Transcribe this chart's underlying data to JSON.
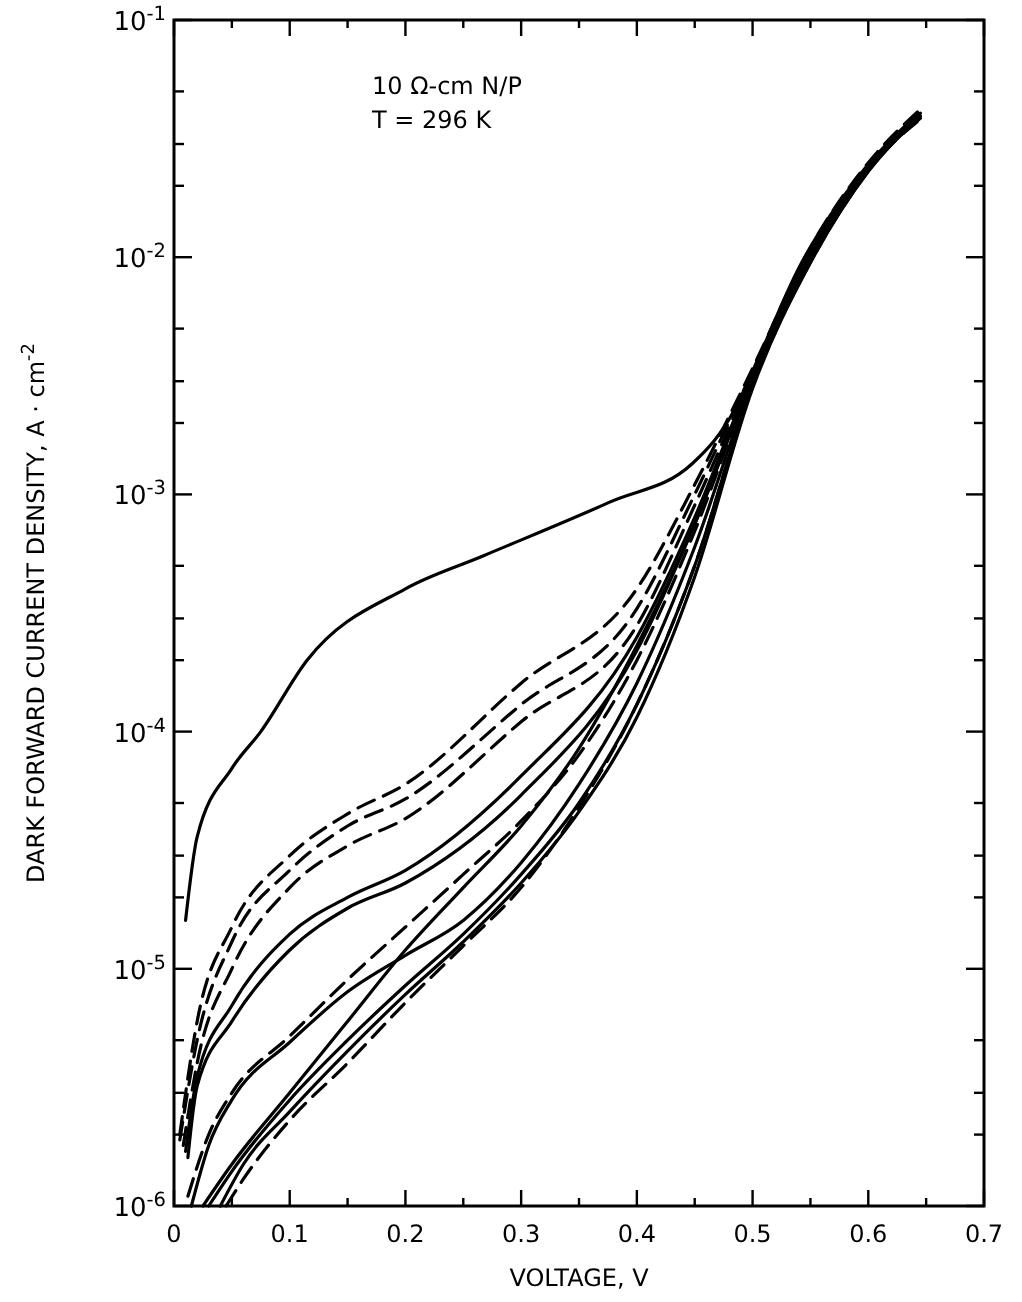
{
  "chart_data": {
    "type": "line",
    "xlabel": "VOLTAGE, V",
    "ylabel": "DARK FORWARD CURRENT DENSITY, A · cm$^{-2}$",
    "annotations": [
      "10 Ω-cm N/P",
      "T = 296 K"
    ],
    "log": "y",
    "grid": false,
    "xlim": [
      0,
      0.7
    ],
    "ylim": [
      1e-06,
      0.1
    ],
    "xticks": [
      0,
      0.1,
      0.2,
      0.3,
      0.4,
      0.5,
      0.6,
      0.7,
      {
        "value": 0.05,
        "label": null
      },
      {
        "value": 0.15,
        "label": null
      },
      {
        "value": 0.25,
        "label": null
      },
      {
        "value": 0.35,
        "label": null
      },
      {
        "value": 0.45,
        "label": null
      },
      {
        "value": 0.55,
        "label": null
      },
      {
        "value": 0.65,
        "label": null
      }
    ],
    "yticks": [
      {
        "value": 1e-06,
        "label": "10$^{-6}$"
      },
      {
        "value": 1e-05,
        "label": "10$^{-5}$"
      },
      {
        "value": 0.0001,
        "label": "10$^{-4}$"
      },
      {
        "value": 0.001,
        "label": "10$^{-3}$"
      },
      {
        "value": 0.01,
        "label": "10$^{-2}$"
      },
      {
        "value": 0.1,
        "label": "10$^{-1}$"
      },
      {
        "value": 2e-06,
        "label": null
      },
      {
        "value": 3e-06,
        "label": null
      },
      {
        "value": 5e-06,
        "label": null
      },
      {
        "value": 2e-05,
        "label": null
      },
      {
        "value": 3e-05,
        "label": null
      },
      {
        "value": 5e-05,
        "label": null
      },
      {
        "value": 0.0002,
        "label": null
      },
      {
        "value": 0.0003,
        "label": null
      },
      {
        "value": 0.0005,
        "label": null
      },
      {
        "value": 0.002,
        "label": null
      },
      {
        "value": 0.003,
        "label": null
      },
      {
        "value": 0.005,
        "label": null
      },
      {
        "value": 0.02,
        "label": null
      },
      {
        "value": 0.03,
        "label": null
      },
      {
        "value": 0.05,
        "label": null
      }
    ],
    "series": [
      {
        "color": "#000000",
        "line_style": "solid",
        "x": [
          0.01,
          0.02,
          0.05,
          0.075,
          0.115,
          0.2,
          0.267,
          0.377,
          0.448,
          0.485,
          0.5,
          0.54,
          0.595,
          0.64
        ],
        "values": [
          1.6e-05,
          3.6e-05,
          7e-05,
          0.0001,
          0.0002,
          0.0004,
          0.00055,
          0.00093,
          0.00135,
          0.0023,
          0.0033,
          0.009,
          0.023,
          0.039
        ]
      },
      {
        "color": "#000000",
        "line_style": "dashed",
        "x": [
          0.005,
          0.02,
          0.05,
          0.1,
          0.15,
          0.2,
          0.3,
          0.4,
          0.45,
          0.5,
          0.55,
          0.6,
          0.645
        ],
        "values": [
          2e-06,
          6e-06,
          1.5e-05,
          3e-05,
          4.5e-05,
          6e-05,
          0.00016,
          0.0004,
          0.0011,
          0.0034,
          0.011,
          0.025,
          0.042
        ]
      },
      {
        "color": "#000000",
        "line_style": "dashed",
        "x": [
          0.005,
          0.02,
          0.05,
          0.1,
          0.15,
          0.2,
          0.3,
          0.4,
          0.45,
          0.5,
          0.55,
          0.6,
          0.645
        ],
        "values": [
          1.9e-06,
          5e-06,
          1.3e-05,
          2.6e-05,
          4e-05,
          5.2e-05,
          0.00013,
          0.00033,
          0.001,
          0.0033,
          0.0105,
          0.024,
          0.041
        ]
      },
      {
        "color": "#000000",
        "line_style": "dashed",
        "x": [
          0.008,
          0.02,
          0.05,
          0.1,
          0.15,
          0.2,
          0.3,
          0.4,
          0.45,
          0.5,
          0.55,
          0.6,
          0.645
        ],
        "values": [
          1.8e-06,
          4e-06,
          1e-05,
          2.2e-05,
          3.3e-05,
          4.3e-05,
          0.00011,
          0.00028,
          0.0009,
          0.0032,
          0.0105,
          0.024,
          0.04
        ]
      },
      {
        "color": "#000000",
        "line_style": "solid",
        "x": [
          0.01,
          0.02,
          0.05,
          0.1,
          0.15,
          0.2,
          0.3,
          0.4,
          0.45,
          0.5,
          0.55,
          0.6,
          0.645
        ],
        "values": [
          1.7e-06,
          3.5e-06,
          7e-06,
          1.4e-05,
          2e-05,
          2.6e-05,
          6.5e-05,
          0.00025,
          0.0008,
          0.0032,
          0.0105,
          0.024,
          0.0395
        ]
      },
      {
        "color": "#000000",
        "line_style": "solid",
        "x": [
          0.012,
          0.02,
          0.05,
          0.1,
          0.15,
          0.2,
          0.3,
          0.4,
          0.45,
          0.5,
          0.55,
          0.6,
          0.645
        ],
        "values": [
          1.6e-06,
          3.2e-06,
          6e-06,
          1.2e-05,
          1.8e-05,
          2.3e-05,
          5.4e-05,
          0.00022,
          0.00075,
          0.0031,
          0.01,
          0.0235,
          0.0385
        ]
      },
      {
        "color": "#000000",
        "line_style": "dashed",
        "x": [
          0.012,
          0.03,
          0.05,
          0.1,
          0.15,
          0.2,
          0.25,
          0.3,
          0.35,
          0.4,
          0.45,
          0.5,
          0.55,
          0.6,
          0.645
        ],
        "values": [
          1.1e-06,
          2e-06,
          3e-06,
          5.2e-06,
          9e-06,
          1.5e-05,
          2.5e-05,
          4.2e-05,
          8e-05,
          0.0002,
          0.0007,
          0.0031,
          0.0105,
          0.024,
          0.0405
        ]
      },
      {
        "color": "#000000",
        "line_style": "solid",
        "x": [
          0.015,
          0.03,
          0.05,
          0.1,
          0.15,
          0.2,
          0.25,
          0.3,
          0.35,
          0.4,
          0.45,
          0.5,
          0.55,
          0.6,
          0.645
        ],
        "values": [
          1e-06,
          1.8e-06,
          2.8e-06,
          4.9e-06,
          8e-06,
          1.14e-05,
          1.6e-05,
          2.8e-05,
          6e-05,
          0.00016,
          0.0006,
          0.003,
          0.01,
          0.0235,
          0.039
        ]
      },
      {
        "color": "#000000",
        "line_style": "solid",
        "x": [
          0.025,
          0.05,
          0.1,
          0.15,
          0.2,
          0.25,
          0.3,
          0.35,
          0.4,
          0.45,
          0.5,
          0.55,
          0.6,
          0.642
        ],
        "values": [
          1e-06,
          1.5e-06,
          3e-06,
          6e-06,
          1.2e-05,
          2.2e-05,
          4e-05,
          8.5e-05,
          0.00023,
          0.00075,
          0.0031,
          0.01,
          0.0235,
          0.0392
        ]
      },
      {
        "color": "#000000",
        "line_style": "solid",
        "x": [
          0.03,
          0.05,
          0.1,
          0.15,
          0.2,
          0.25,
          0.3,
          0.35,
          0.4,
          0.45,
          0.5,
          0.55,
          0.6,
          0.64
        ],
        "values": [
          1e-06,
          1.4e-06,
          2.8e-06,
          5e-06,
          8.5e-06,
          1.4e-05,
          2.5e-05,
          5e-05,
          0.00013,
          0.0005,
          0.0029,
          0.0095,
          0.023,
          0.038
        ]
      },
      {
        "color": "#000000",
        "line_style": "solid",
        "x": [
          0.04,
          0.06,
          0.1,
          0.15,
          0.2,
          0.25,
          0.3,
          0.35,
          0.4,
          0.45,
          0.5,
          0.55,
          0.6,
          0.64
        ],
        "values": [
          1e-06,
          1.5e-06,
          2.5e-06,
          4.5e-06,
          7.8e-06,
          1.3e-05,
          2.3e-05,
          4.6e-05,
          0.000115,
          0.00045,
          0.0028,
          0.0095,
          0.023,
          0.0375
        ]
      },
      {
        "color": "#000000",
        "line_style": "dashed",
        "x": [
          0.045,
          0.06,
          0.1,
          0.15,
          0.2,
          0.25,
          0.3,
          0.35,
          0.4,
          0.45,
          0.5,
          0.55,
          0.6,
          0.647
        ],
        "values": [
          1e-06,
          1.3e-06,
          2.3e-06,
          4e-06,
          7.2e-06,
          1.25e-05,
          2.2e-05,
          4.8e-05,
          0.00013,
          0.0005,
          0.0029,
          0.0098,
          0.0235,
          0.0388
        ]
      }
    ]
  }
}
